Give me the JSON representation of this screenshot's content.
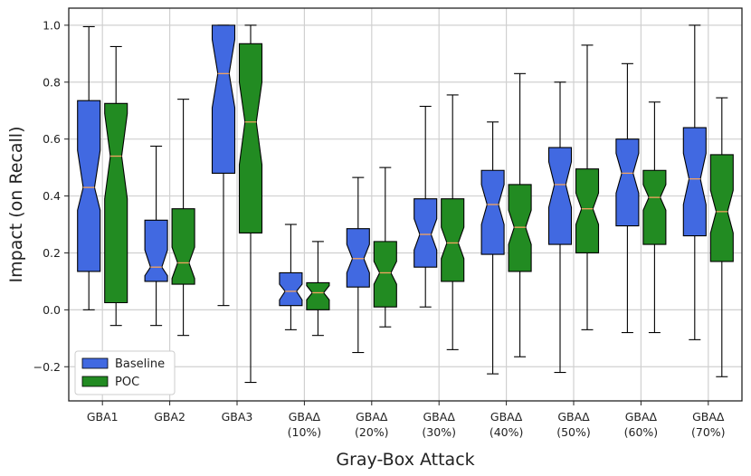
{
  "chart_data": {
    "type": "boxplot",
    "notched": true,
    "xlabel": "Gray-Box Attack",
    "ylabel": "Impact (on Recall)",
    "ylim": [
      -0.32,
      1.06
    ],
    "yticks": [
      -0.2,
      0.0,
      0.2,
      0.4,
      0.6,
      0.8,
      1.0
    ],
    "ytick_labels": [
      "−0.2",
      "0.0",
      "0.2",
      "0.4",
      "0.6",
      "0.8",
      "1.0"
    ],
    "grid": true,
    "legend_position": "bottom-left",
    "categories": [
      [
        "GBA1"
      ],
      [
        "GBA2"
      ],
      [
        "GBA3"
      ],
      [
        "GBAΔ",
        "(10%)"
      ],
      [
        "GBAΔ",
        "(20%)"
      ],
      [
        "GBAΔ",
        "(30%)"
      ],
      [
        "GBAΔ",
        "(40%)"
      ],
      [
        "GBAΔ",
        "(50%)"
      ],
      [
        "GBAΔ",
        "(60%)"
      ],
      [
        "GBAΔ",
        "(70%)"
      ]
    ],
    "series": [
      {
        "name": "Baseline",
        "color": "#4169e1",
        "boxes": [
          {
            "whislo": 0.0,
            "q1": 0.135,
            "med": 0.43,
            "q3": 0.735,
            "whishi": 0.995,
            "notch_lo": 0.35,
            "notch_hi": 0.56
          },
          {
            "whislo": -0.055,
            "q1": 0.1,
            "med": 0.15,
            "q3": 0.315,
            "whishi": 0.575,
            "notch_lo": 0.12,
            "notch_hi": 0.21
          },
          {
            "whislo": 0.015,
            "q1": 0.48,
            "med": 0.83,
            "q3": 1.0,
            "whishi": 1.0,
            "notch_lo": 0.71,
            "notch_hi": 0.95
          },
          {
            "whislo": -0.07,
            "q1": 0.015,
            "med": 0.065,
            "q3": 0.13,
            "whishi": 0.3,
            "notch_lo": 0.035,
            "notch_hi": 0.09
          },
          {
            "whislo": -0.15,
            "q1": 0.08,
            "med": 0.18,
            "q3": 0.285,
            "whishi": 0.465,
            "notch_lo": 0.13,
            "notch_hi": 0.23
          },
          {
            "whislo": 0.01,
            "q1": 0.15,
            "med": 0.265,
            "q3": 0.39,
            "whishi": 0.715,
            "notch_lo": 0.21,
            "notch_hi": 0.32
          },
          {
            "whislo": -0.225,
            "q1": 0.195,
            "med": 0.37,
            "q3": 0.49,
            "whishi": 0.66,
            "notch_lo": 0.3,
            "notch_hi": 0.44
          },
          {
            "whislo": -0.22,
            "q1": 0.23,
            "med": 0.44,
            "q3": 0.57,
            "whishi": 0.8,
            "notch_lo": 0.36,
            "notch_hi": 0.52
          },
          {
            "whislo": -0.08,
            "q1": 0.295,
            "med": 0.48,
            "q3": 0.6,
            "whishi": 0.865,
            "notch_lo": 0.41,
            "notch_hi": 0.55
          },
          {
            "whislo": -0.105,
            "q1": 0.26,
            "med": 0.46,
            "q3": 0.64,
            "whishi": 1.0,
            "notch_lo": 0.37,
            "notch_hi": 0.55
          }
        ]
      },
      {
        "name": "POC",
        "color": "#228b22",
        "boxes": [
          {
            "whislo": -0.055,
            "q1": 0.025,
            "med": 0.54,
            "q3": 0.725,
            "whishi": 0.925,
            "notch_lo": 0.39,
            "notch_hi": 0.69
          },
          {
            "whislo": -0.09,
            "q1": 0.09,
            "med": 0.165,
            "q3": 0.355,
            "whishi": 0.74,
            "notch_lo": 0.11,
            "notch_hi": 0.22
          },
          {
            "whislo": -0.255,
            "q1": 0.27,
            "med": 0.66,
            "q3": 0.935,
            "whishi": 1.0,
            "notch_lo": 0.51,
            "notch_hi": 0.8
          },
          {
            "whislo": -0.09,
            "q1": 0.0,
            "med": 0.06,
            "q3": 0.095,
            "whishi": 0.24,
            "notch_lo": 0.035,
            "notch_hi": 0.085
          },
          {
            "whislo": -0.06,
            "q1": 0.01,
            "med": 0.13,
            "q3": 0.24,
            "whishi": 0.5,
            "notch_lo": 0.09,
            "notch_hi": 0.17
          },
          {
            "whislo": -0.14,
            "q1": 0.1,
            "med": 0.235,
            "q3": 0.39,
            "whishi": 0.755,
            "notch_lo": 0.18,
            "notch_hi": 0.29
          },
          {
            "whislo": -0.165,
            "q1": 0.135,
            "med": 0.29,
            "q3": 0.44,
            "whishi": 0.83,
            "notch_lo": 0.23,
            "notch_hi": 0.35
          },
          {
            "whislo": -0.07,
            "q1": 0.2,
            "med": 0.355,
            "q3": 0.495,
            "whishi": 0.93,
            "notch_lo": 0.3,
            "notch_hi": 0.41
          },
          {
            "whislo": -0.08,
            "q1": 0.23,
            "med": 0.395,
            "q3": 0.49,
            "whishi": 0.73,
            "notch_lo": 0.35,
            "notch_hi": 0.44
          },
          {
            "whislo": -0.235,
            "q1": 0.17,
            "med": 0.345,
            "q3": 0.545,
            "whishi": 0.745,
            "notch_lo": 0.27,
            "notch_hi": 0.42
          }
        ]
      }
    ],
    "median_color": "#f4a460"
  }
}
